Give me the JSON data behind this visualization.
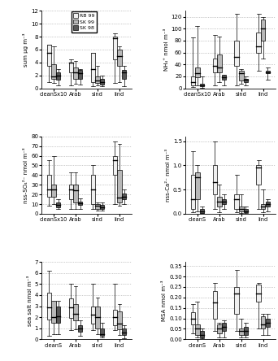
{
  "colors": {
    "RB99": "#f0f0f0",
    "SK99": "#b8b8b8",
    "SK98": "#585858"
  },
  "legend": {
    "labels": [
      "RB 99",
      "SK 99",
      "SK 98"
    ],
    "colors": [
      "#f0f0f0",
      "#b8b8b8",
      "#585858"
    ]
  },
  "plots": [
    {
      "ylabel": "sum μg m⁻³",
      "ylim": [
        0,
        12
      ],
      "yticks": [
        0,
        2,
        4,
        6,
        8,
        10,
        12
      ],
      "groups": [
        "cleanSx10",
        "Arab",
        "sind",
        "lind"
      ],
      "show_legend": true,
      "boxes_whiskers": {
        "RB99": {
          "cleanSx10": {
            "med": 5.5,
            "q1": 3.5,
            "q3": 6.7,
            "whislo": 1.0,
            "whishi": 6.7
          },
          "Arab": {
            "med": 4.0,
            "q1": 2.5,
            "q3": 4.0,
            "whislo": 0.5,
            "whishi": 4.5
          },
          "sind": {
            "med": 3.0,
            "q1": 1.0,
            "q3": 5.5,
            "whislo": 0.3,
            "whishi": 5.5
          },
          "lind": {
            "med": 7.7,
            "q1": 4.5,
            "q3": 8.0,
            "whislo": 0.8,
            "whishi": 8.5
          }
        },
        "SK99": {
          "cleanSx10": {
            "med": 1.9,
            "q1": 1.5,
            "q3": 3.7,
            "whislo": 0.8,
            "whishi": 6.5
          },
          "Arab": {
            "med": 2.5,
            "q1": 1.4,
            "q3": 3.2,
            "whislo": 0.7,
            "whishi": 4.2
          },
          "sind": {
            "med": 1.2,
            "q1": 0.8,
            "q3": 1.8,
            "whislo": 0.5,
            "whishi": 3.5
          },
          "lind": {
            "med": 5.0,
            "q1": 3.5,
            "q3": 6.0,
            "whislo": 1.0,
            "whishi": 6.5
          }
        },
        "SK98": {
          "cleanSx10": {
            "med": 2.0,
            "q1": 1.3,
            "q3": 2.5,
            "whislo": 0.5,
            "whishi": 3.0
          },
          "Arab": {
            "med": 2.3,
            "q1": 1.5,
            "q3": 2.8,
            "whislo": 0.6,
            "whishi": 3.0
          },
          "sind": {
            "med": 0.9,
            "q1": 0.6,
            "q3": 1.4,
            "whislo": 0.3,
            "whishi": 2.0
          },
          "lind": {
            "med": 2.5,
            "q1": 1.5,
            "q3": 2.8,
            "whislo": 0.3,
            "whishi": 3.5
          }
        }
      }
    },
    {
      "ylabel": "NH₄⁺ nmol m⁻³",
      "ylim": [
        0,
        130
      ],
      "yticks": [
        0,
        20,
        40,
        60,
        80,
        100,
        120
      ],
      "groups": [
        "cleanSx10",
        "Arab",
        "sind",
        "lind"
      ],
      "show_legend": false,
      "boxes_whiskers": {
        "RB99": {
          "cleanSx10": {
            "med": 10,
            "q1": 5,
            "q3": 20,
            "whislo": 2,
            "whishi": 85
          },
          "Arab": {
            "med": 38,
            "q1": 27,
            "q3": 50,
            "whislo": 5,
            "whishi": 90
          },
          "sind": {
            "med": 52,
            "q1": 37,
            "q3": 80,
            "whislo": 5,
            "whishi": 125
          },
          "lind": {
            "med": 70,
            "q1": 60,
            "q3": 93,
            "whislo": 30,
            "whishi": 125
          }
        },
        "SK99": {
          "cleanSx10": {
            "med": 25,
            "q1": 18,
            "q3": 35,
            "whislo": 5,
            "whishi": 105
          },
          "Arab": {
            "med": 35,
            "q1": 27,
            "q3": 57,
            "whislo": 10,
            "whishi": 87
          },
          "sind": {
            "med": 25,
            "q1": 13,
            "q3": 30,
            "whislo": 8,
            "whishi": 32
          },
          "lind": {
            "med": 100,
            "q1": 80,
            "q3": 115,
            "whislo": 50,
            "whishi": 120
          }
        },
        "SK98": {
          "cleanSx10": {
            "med": 5,
            "q1": 3,
            "q3": 8,
            "whislo": 1,
            "whishi": 20
          },
          "Arab": {
            "med": 18,
            "q1": 14,
            "q3": 22,
            "whislo": 5,
            "whishi": 20
          },
          "sind": {
            "med": 14,
            "q1": 10,
            "q3": 16,
            "whislo": 5,
            "whishi": 20
          },
          "lind": {
            "med": 27,
            "q1": 25,
            "q3": 30,
            "whislo": 15,
            "whishi": 35
          }
        }
      }
    },
    {
      "ylabel": "nss-SO₄²⁻ nmol m⁻³",
      "ylim": [
        0,
        80
      ],
      "yticks": [
        0,
        10,
        20,
        30,
        40,
        50,
        60,
        70,
        80
      ],
      "groups": [
        "cleanSx10",
        "Arab",
        "sind",
        "lind"
      ],
      "show_legend": false,
      "boxes_whiskers": {
        "RB99": {
          "cleanSx10": {
            "med": 25,
            "q1": 18,
            "q3": 40,
            "whislo": 8,
            "whishi": 55
          },
          "Arab": {
            "med": 25,
            "q1": 15,
            "q3": 30,
            "whislo": 5,
            "whishi": 43
          },
          "sind": {
            "med": 25,
            "q1": 10,
            "q3": 40,
            "whislo": 5,
            "whishi": 50
          },
          "lind": {
            "med": 55,
            "q1": 40,
            "q3": 60,
            "whislo": 10,
            "whishi": 75
          }
        },
        "SK99": {
          "cleanSx10": {
            "med": 25,
            "q1": 18,
            "q3": 30,
            "whislo": 10,
            "whishi": 60
          },
          "Arab": {
            "med": 24,
            "q1": 12,
            "q3": 30,
            "whislo": 5,
            "whishi": 43
          },
          "sind": {
            "med": 8,
            "q1": 5,
            "q3": 10,
            "whislo": 3,
            "whishi": 12
          },
          "lind": {
            "med": 17,
            "q1": 12,
            "q3": 45,
            "whislo": 8,
            "whishi": 72
          }
        },
        "SK98": {
          "cleanSx10": {
            "med": 9,
            "q1": 7,
            "q3": 12,
            "whislo": 5,
            "whishi": 15
          },
          "Arab": {
            "med": 11,
            "q1": 9,
            "q3": 13,
            "whislo": 5,
            "whishi": 16
          },
          "sind": {
            "med": 7,
            "q1": 5,
            "q3": 9,
            "whislo": 3,
            "whishi": 12
          },
          "lind": {
            "med": 18,
            "q1": 15,
            "q3": 21,
            "whislo": 10,
            "whishi": 25
          }
        }
      }
    },
    {
      "ylabel": "nss-Ca²⁻ nmol m⁻³",
      "ylim": [
        0,
        1.6
      ],
      "yticks": [
        0,
        0.5,
        1.0,
        1.5
      ],
      "groups": [
        "cleanS",
        "Arab",
        "sind",
        "lind"
      ],
      "show_legend": false,
      "boxes_whiskers": {
        "RB99": {
          "cleanS": {
            "med": 0.3,
            "q1": 0.1,
            "q3": 0.8,
            "whislo": 0.03,
            "whishi": 1.3
          },
          "Arab": {
            "med": 0.65,
            "q1": 0.4,
            "q3": 1.0,
            "whislo": 0.1,
            "whishi": 1.5
          },
          "sind": {
            "med": 0.3,
            "q1": 0.1,
            "q3": 0.4,
            "whislo": 0.03,
            "whishi": 0.8
          },
          "lind": {
            "med": 0.95,
            "q1": 0.6,
            "q3": 1.0,
            "whislo": 0.1,
            "whishi": 1.1
          }
        },
        "SK99": {
          "cleanS": {
            "med": 0.75,
            "q1": 0.3,
            "q3": 0.85,
            "whislo": 0.05,
            "whishi": 1.0
          },
          "Arab": {
            "med": 0.25,
            "q1": 0.15,
            "q3": 0.35,
            "whislo": 0.03,
            "whishi": 0.6
          },
          "sind": {
            "med": 0.1,
            "q1": 0.05,
            "q3": 0.15,
            "whislo": 0.02,
            "whishi": 0.4
          },
          "lind": {
            "med": 0.15,
            "q1": 0.1,
            "q3": 0.2,
            "whislo": 0.03,
            "whishi": 0.5
          }
        },
        "SK98": {
          "cleanS": {
            "med": 0.05,
            "q1": 0.02,
            "q3": 0.1,
            "whislo": 0.01,
            "whishi": 0.15
          },
          "Arab": {
            "med": 0.25,
            "q1": 0.2,
            "q3": 0.3,
            "whislo": 0.1,
            "whishi": 0.4
          },
          "sind": {
            "med": 0.05,
            "q1": 0.03,
            "q3": 0.1,
            "whislo": 0.01,
            "whishi": 0.15
          },
          "lind": {
            "med": 0.2,
            "q1": 0.15,
            "q3": 0.25,
            "whislo": 0.05,
            "whishi": 0.3
          }
        }
      }
    },
    {
      "ylabel": "sea salt nmol m⁻³",
      "ylim": [
        0,
        7
      ],
      "yticks": [
        0,
        1,
        2,
        3,
        4,
        5,
        6,
        7
      ],
      "groups": [
        "cleanS",
        "Arab",
        "sind",
        "lind"
      ],
      "show_legend": false,
      "boxes_whiskers": {
        "RB99": {
          "cleanS": {
            "med": 2.9,
            "q1": 1.8,
            "q3": 4.2,
            "whislo": 0.3,
            "whishi": 6.2
          },
          "Arab": {
            "med": 2.9,
            "q1": 1.9,
            "q3": 3.7,
            "whislo": 0.8,
            "whishi": 5.0
          },
          "sind": {
            "med": 2.2,
            "q1": 1.4,
            "q3": 3.0,
            "whislo": 0.8,
            "whishi": 5.0
          },
          "lind": {
            "med": 2.0,
            "q1": 1.3,
            "q3": 2.7,
            "whislo": 0.8,
            "whishi": 5.0
          }
        },
        "SK99": {
          "cleanS": {
            "med": 2.0,
            "q1": 1.5,
            "q3": 3.5,
            "whislo": 0.5,
            "whishi": 3.3
          },
          "Arab": {
            "med": 2.3,
            "q1": 1.7,
            "q3": 3.2,
            "whislo": 0.9,
            "whishi": 4.8
          },
          "sind": {
            "med": 2.0,
            "q1": 1.0,
            "q3": 3.0,
            "whislo": 0.5,
            "whishi": 3.8
          },
          "lind": {
            "med": 1.4,
            "q1": 0.9,
            "q3": 2.5,
            "whislo": 0.4,
            "whishi": 3.2
          }
        },
        "SK98": {
          "cleanS": {
            "med": 2.1,
            "q1": 1.5,
            "q3": 3.0,
            "whislo": 0.5,
            "whishi": 3.5
          },
          "Arab": {
            "med": 1.0,
            "q1": 0.7,
            "q3": 1.3,
            "whislo": 0.3,
            "whishi": 1.7
          },
          "sind": {
            "med": 0.5,
            "q1": 0.3,
            "q3": 1.0,
            "whislo": 0.2,
            "whishi": 1.5
          },
          "lind": {
            "med": 0.6,
            "q1": 0.4,
            "q3": 1.0,
            "whislo": 0.1,
            "whishi": 1.3
          }
        }
      }
    },
    {
      "ylabel": "MSA nmol m⁻³",
      "ylim": [
        0,
        0.37
      ],
      "yticks": [
        0,
        0.05,
        0.1,
        0.15,
        0.2,
        0.25,
        0.3,
        0.35
      ],
      "groups": [
        "cleanS",
        "Arab",
        "sind",
        "lind"
      ],
      "show_legend": false,
      "boxes_whiskers": {
        "RB99": {
          "cleanS": {
            "med": 0.1,
            "q1": 0.07,
            "q3": 0.13,
            "whislo": 0.03,
            "whishi": 0.17
          },
          "Arab": {
            "med": 0.175,
            "q1": 0.1,
            "q3": 0.23,
            "whislo": 0.04,
            "whishi": 0.27
          },
          "sind": {
            "med": 0.22,
            "q1": 0.12,
            "q3": 0.25,
            "whislo": 0.04,
            "whishi": 0.33
          },
          "lind": {
            "med": 0.22,
            "q1": 0.18,
            "q3": 0.26,
            "whislo": 0.05,
            "whishi": 0.27
          }
        },
        "SK99": {
          "cleanS": {
            "med": 0.05,
            "q1": 0.02,
            "q3": 0.07,
            "whislo": 0.01,
            "whishi": 0.18
          },
          "Arab": {
            "med": 0.05,
            "q1": 0.03,
            "q3": 0.07,
            "whislo": 0.01,
            "whishi": 0.08
          },
          "sind": {
            "med": 0.04,
            "q1": 0.02,
            "q3": 0.05,
            "whislo": 0.01,
            "whishi": 0.1
          },
          "lind": {
            "med": 0.07,
            "q1": 0.05,
            "q3": 0.11,
            "whislo": 0.02,
            "whishi": 0.12
          }
        },
        "SK98": {
          "cleanS": {
            "med": 0.02,
            "q1": 0.01,
            "q3": 0.04,
            "whislo": 0.005,
            "whishi": 0.05
          },
          "Arab": {
            "med": 0.06,
            "q1": 0.04,
            "q3": 0.08,
            "whislo": 0.01,
            "whishi": 0.09
          },
          "sind": {
            "med": 0.04,
            "q1": 0.02,
            "q3": 0.06,
            "whislo": 0.01,
            "whishi": 0.08
          },
          "lind": {
            "med": 0.08,
            "q1": 0.06,
            "q3": 0.1,
            "whislo": 0.02,
            "whishi": 0.12
          }
        }
      }
    }
  ]
}
